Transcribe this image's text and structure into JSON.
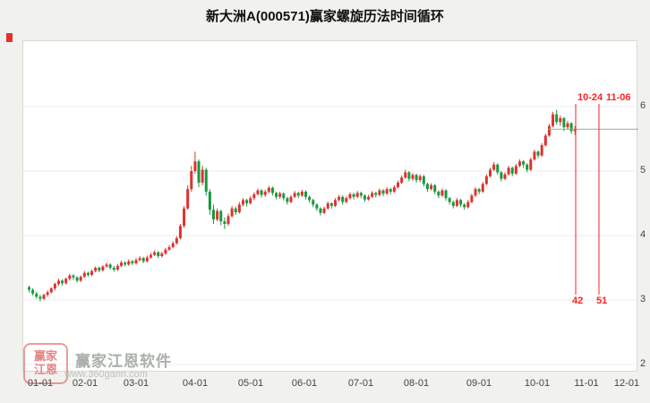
{
  "title": "新大洲A(000571)赢家螺旋历法时间循环",
  "watermark": {
    "brand": "赢家江恩软件",
    "url": "www.360gann.com",
    "logo_top": "赢家",
    "logo_bottom": "江恩"
  },
  "axes": {
    "y_labels": [
      "6",
      "5",
      "4",
      "3",
      "2"
    ],
    "x_labels": [
      "01-01",
      "02-01",
      "03-01",
      "04-01",
      "05-01",
      "06-01",
      "07-01",
      "08-01",
      "09-01",
      "10-01",
      "11-01",
      "12-01"
    ]
  },
  "annotations": {
    "v1_date": "10-24",
    "v2_date": "11-06",
    "v1_count": "42",
    "v2_count": "51"
  },
  "colors": {
    "up": "#dd3330",
    "down": "#179a3d",
    "annotation": "#ff2222",
    "last_price_line": "#8faf9c",
    "grid": "#ececec",
    "background": "#f1f1ee",
    "plot_bg": "#ffffff"
  },
  "chart_data": {
    "type": "candlestick",
    "title": "新大洲A(000571)赢家螺旋历法时间循环",
    "symbol": "新大洲A",
    "code": "000571",
    "ylim": [
      2,
      6
    ],
    "y_ticks": [
      2,
      3,
      4,
      5,
      6
    ],
    "x_tick_labels": [
      "01-01",
      "02-01",
      "03-01",
      "04-01",
      "05-01",
      "06-01",
      "07-01",
      "08-01",
      "09-01",
      "10-01",
      "11-01",
      "12-01"
    ],
    "last_close": 5.65,
    "cycle_lines": [
      {
        "date": "10-24",
        "count": "42"
      },
      {
        "date": "11-06",
        "count": "51"
      }
    ],
    "candles": [
      [
        3.2,
        3.22,
        3.12,
        3.16
      ],
      [
        3.16,
        3.18,
        3.07,
        3.1
      ],
      [
        3.1,
        3.13,
        3.02,
        3.05
      ],
      [
        3.05,
        3.08,
        2.98,
        3.02
      ],
      [
        3.02,
        3.1,
        3.0,
        3.08
      ],
      [
        3.08,
        3.15,
        3.05,
        3.12
      ],
      [
        3.12,
        3.2,
        3.1,
        3.18
      ],
      [
        3.18,
        3.27,
        3.15,
        3.25
      ],
      [
        3.25,
        3.33,
        3.22,
        3.3
      ],
      [
        3.3,
        3.32,
        3.22,
        3.26
      ],
      [
        3.26,
        3.35,
        3.24,
        3.33
      ],
      [
        3.33,
        3.41,
        3.3,
        3.38
      ],
      [
        3.38,
        3.4,
        3.31,
        3.35
      ],
      [
        3.35,
        3.37,
        3.27,
        3.3
      ],
      [
        3.3,
        3.38,
        3.28,
        3.36
      ],
      [
        3.36,
        3.45,
        3.34,
        3.42
      ],
      [
        3.42,
        3.44,
        3.36,
        3.39
      ],
      [
        3.39,
        3.47,
        3.37,
        3.45
      ],
      [
        3.45,
        3.52,
        3.43,
        3.5
      ],
      [
        3.5,
        3.52,
        3.43,
        3.46
      ],
      [
        3.46,
        3.54,
        3.44,
        3.52
      ],
      [
        3.52,
        3.58,
        3.5,
        3.55
      ],
      [
        3.55,
        3.57,
        3.47,
        3.5
      ],
      [
        3.5,
        3.53,
        3.44,
        3.47
      ],
      [
        3.47,
        3.56,
        3.45,
        3.53
      ],
      [
        3.53,
        3.61,
        3.51,
        3.58
      ],
      [
        3.58,
        3.6,
        3.52,
        3.55
      ],
      [
        3.55,
        3.63,
        3.53,
        3.6
      ],
      [
        3.6,
        3.62,
        3.54,
        3.57
      ],
      [
        3.57,
        3.65,
        3.55,
        3.62
      ],
      [
        3.62,
        3.68,
        3.6,
        3.65
      ],
      [
        3.65,
        3.67,
        3.57,
        3.6
      ],
      [
        3.6,
        3.69,
        3.58,
        3.66
      ],
      [
        3.66,
        3.73,
        3.64,
        3.7
      ],
      [
        3.7,
        3.77,
        3.68,
        3.74
      ],
      [
        3.74,
        3.76,
        3.65,
        3.68
      ],
      [
        3.68,
        3.75,
        3.66,
        3.72
      ],
      [
        3.72,
        3.81,
        3.7,
        3.78
      ],
      [
        3.78,
        3.85,
        3.76,
        3.82
      ],
      [
        3.82,
        3.91,
        3.8,
        3.88
      ],
      [
        3.88,
        3.99,
        3.86,
        3.96
      ],
      [
        3.96,
        4.18,
        3.94,
        4.15
      ],
      [
        4.15,
        4.46,
        4.12,
        4.42
      ],
      [
        4.42,
        4.78,
        4.4,
        4.72
      ],
      [
        4.72,
        5.08,
        4.68,
        5.0
      ],
      [
        5.0,
        5.3,
        4.96,
        5.15
      ],
      [
        5.15,
        5.18,
        4.75,
        4.82
      ],
      [
        4.82,
        5.08,
        4.78,
        5.02
      ],
      [
        5.02,
        5.05,
        4.62,
        4.68
      ],
      [
        4.68,
        4.72,
        4.32,
        4.4
      ],
      [
        4.4,
        4.48,
        4.18,
        4.25
      ],
      [
        4.25,
        4.42,
        4.22,
        4.38
      ],
      [
        4.38,
        4.4,
        4.16,
        4.22
      ],
      [
        4.22,
        4.28,
        4.1,
        4.18
      ],
      [
        4.18,
        4.34,
        4.15,
        4.3
      ],
      [
        4.3,
        4.46,
        4.28,
        4.42
      ],
      [
        4.42,
        4.45,
        4.32,
        4.36
      ],
      [
        4.36,
        4.52,
        4.34,
        4.48
      ],
      [
        4.48,
        4.58,
        4.45,
        4.55
      ],
      [
        4.55,
        4.57,
        4.45,
        4.5
      ],
      [
        4.5,
        4.61,
        4.48,
        4.58
      ],
      [
        4.58,
        4.67,
        4.55,
        4.64
      ],
      [
        4.64,
        4.73,
        4.62,
        4.7
      ],
      [
        4.7,
        4.72,
        4.59,
        4.63
      ],
      [
        4.63,
        4.71,
        4.6,
        4.68
      ],
      [
        4.68,
        4.77,
        4.65,
        4.74
      ],
      [
        4.74,
        4.76,
        4.62,
        4.66
      ],
      [
        4.66,
        4.68,
        4.56,
        4.6
      ],
      [
        4.6,
        4.68,
        4.57,
        4.65
      ],
      [
        4.65,
        4.67,
        4.54,
        4.58
      ],
      [
        4.58,
        4.6,
        4.48,
        4.52
      ],
      [
        4.52,
        4.63,
        4.5,
        4.6
      ],
      [
        4.6,
        4.69,
        4.58,
        4.66
      ],
      [
        4.66,
        4.68,
        4.58,
        4.62
      ],
      [
        4.62,
        4.71,
        4.6,
        4.68
      ],
      [
        4.68,
        4.7,
        4.56,
        4.6
      ],
      [
        4.6,
        4.62,
        4.51,
        4.55
      ],
      [
        4.55,
        4.57,
        4.44,
        4.48
      ],
      [
        4.48,
        4.5,
        4.38,
        4.42
      ],
      [
        4.42,
        4.44,
        4.31,
        4.35
      ],
      [
        4.35,
        4.45,
        4.33,
        4.42
      ],
      [
        4.42,
        4.53,
        4.4,
        4.5
      ],
      [
        4.5,
        4.52,
        4.42,
        4.46
      ],
      [
        4.46,
        4.58,
        4.44,
        4.55
      ],
      [
        4.55,
        4.63,
        4.53,
        4.6
      ],
      [
        4.6,
        4.62,
        4.48,
        4.52
      ],
      [
        4.52,
        4.61,
        4.5,
        4.58
      ],
      [
        4.58,
        4.67,
        4.56,
        4.64
      ],
      [
        4.64,
        4.66,
        4.56,
        4.6
      ],
      [
        4.6,
        4.69,
        4.58,
        4.66
      ],
      [
        4.66,
        4.68,
        4.58,
        4.62
      ],
      [
        4.62,
        4.64,
        4.52,
        4.56
      ],
      [
        4.56,
        4.63,
        4.54,
        4.6
      ],
      [
        4.6,
        4.69,
        4.58,
        4.66
      ],
      [
        4.66,
        4.68,
        4.59,
        4.63
      ],
      [
        4.63,
        4.73,
        4.61,
        4.7
      ],
      [
        4.7,
        4.72,
        4.61,
        4.65
      ],
      [
        4.65,
        4.75,
        4.63,
        4.72
      ],
      [
        4.72,
        4.74,
        4.64,
        4.68
      ],
      [
        4.68,
        4.78,
        4.66,
        4.75
      ],
      [
        4.75,
        4.85,
        4.73,
        4.82
      ],
      [
        4.82,
        4.93,
        4.8,
        4.9
      ],
      [
        4.9,
        5.02,
        4.88,
        4.98
      ],
      [
        4.98,
        5.0,
        4.84,
        4.88
      ],
      [
        4.88,
        4.97,
        4.85,
        4.94
      ],
      [
        4.94,
        4.96,
        4.82,
        4.86
      ],
      [
        4.86,
        4.95,
        4.83,
        4.92
      ],
      [
        4.92,
        4.94,
        4.76,
        4.8
      ],
      [
        4.8,
        4.82,
        4.68,
        4.72
      ],
      [
        4.72,
        4.81,
        4.7,
        4.78
      ],
      [
        4.78,
        4.8,
        4.64,
        4.68
      ],
      [
        4.68,
        4.7,
        4.58,
        4.62
      ],
      [
        4.62,
        4.73,
        4.6,
        4.7
      ],
      [
        4.7,
        4.72,
        4.54,
        4.58
      ],
      [
        4.58,
        4.6,
        4.48,
        4.52
      ],
      [
        4.52,
        4.54,
        4.42,
        4.46
      ],
      [
        4.46,
        4.58,
        4.44,
        4.55
      ],
      [
        4.55,
        4.57,
        4.44,
        4.48
      ],
      [
        4.48,
        4.5,
        4.4,
        4.44
      ],
      [
        4.44,
        4.55,
        4.42,
        4.52
      ],
      [
        4.52,
        4.65,
        4.5,
        4.62
      ],
      [
        4.62,
        4.75,
        4.6,
        4.72
      ],
      [
        4.72,
        4.74,
        4.64,
        4.68
      ],
      [
        4.68,
        4.83,
        4.66,
        4.8
      ],
      [
        4.8,
        4.95,
        4.78,
        4.92
      ],
      [
        4.92,
        5.05,
        4.9,
        5.02
      ],
      [
        5.02,
        5.14,
        5.0,
        5.1
      ],
      [
        5.1,
        5.12,
        4.94,
        4.98
      ],
      [
        4.98,
        5.0,
        4.84,
        4.88
      ],
      [
        4.88,
        4.98,
        4.86,
        4.95
      ],
      [
        4.95,
        5.08,
        4.93,
        5.05
      ],
      [
        5.05,
        5.07,
        4.92,
        4.96
      ],
      [
        4.96,
        5.11,
        4.94,
        5.08
      ],
      [
        5.08,
        5.18,
        5.06,
        5.15
      ],
      [
        5.15,
        5.17,
        5.05,
        5.1
      ],
      [
        5.1,
        5.12,
        4.98,
        5.02
      ],
      [
        5.02,
        5.21,
        5.0,
        5.18
      ],
      [
        5.18,
        5.33,
        5.16,
        5.3
      ],
      [
        5.3,
        5.32,
        5.2,
        5.24
      ],
      [
        5.24,
        5.43,
        5.22,
        5.4
      ],
      [
        5.4,
        5.58,
        5.38,
        5.55
      ],
      [
        5.55,
        5.73,
        5.53,
        5.7
      ],
      [
        5.7,
        5.92,
        5.68,
        5.88
      ],
      [
        5.88,
        5.95,
        5.72,
        5.76
      ],
      [
        5.76,
        5.86,
        5.7,
        5.82
      ],
      [
        5.82,
        5.84,
        5.62,
        5.68
      ],
      [
        5.68,
        5.78,
        5.64,
        5.74
      ],
      [
        5.74,
        5.76,
        5.58,
        5.62
      ],
      [
        5.62,
        5.7,
        5.56,
        5.65
      ]
    ]
  }
}
